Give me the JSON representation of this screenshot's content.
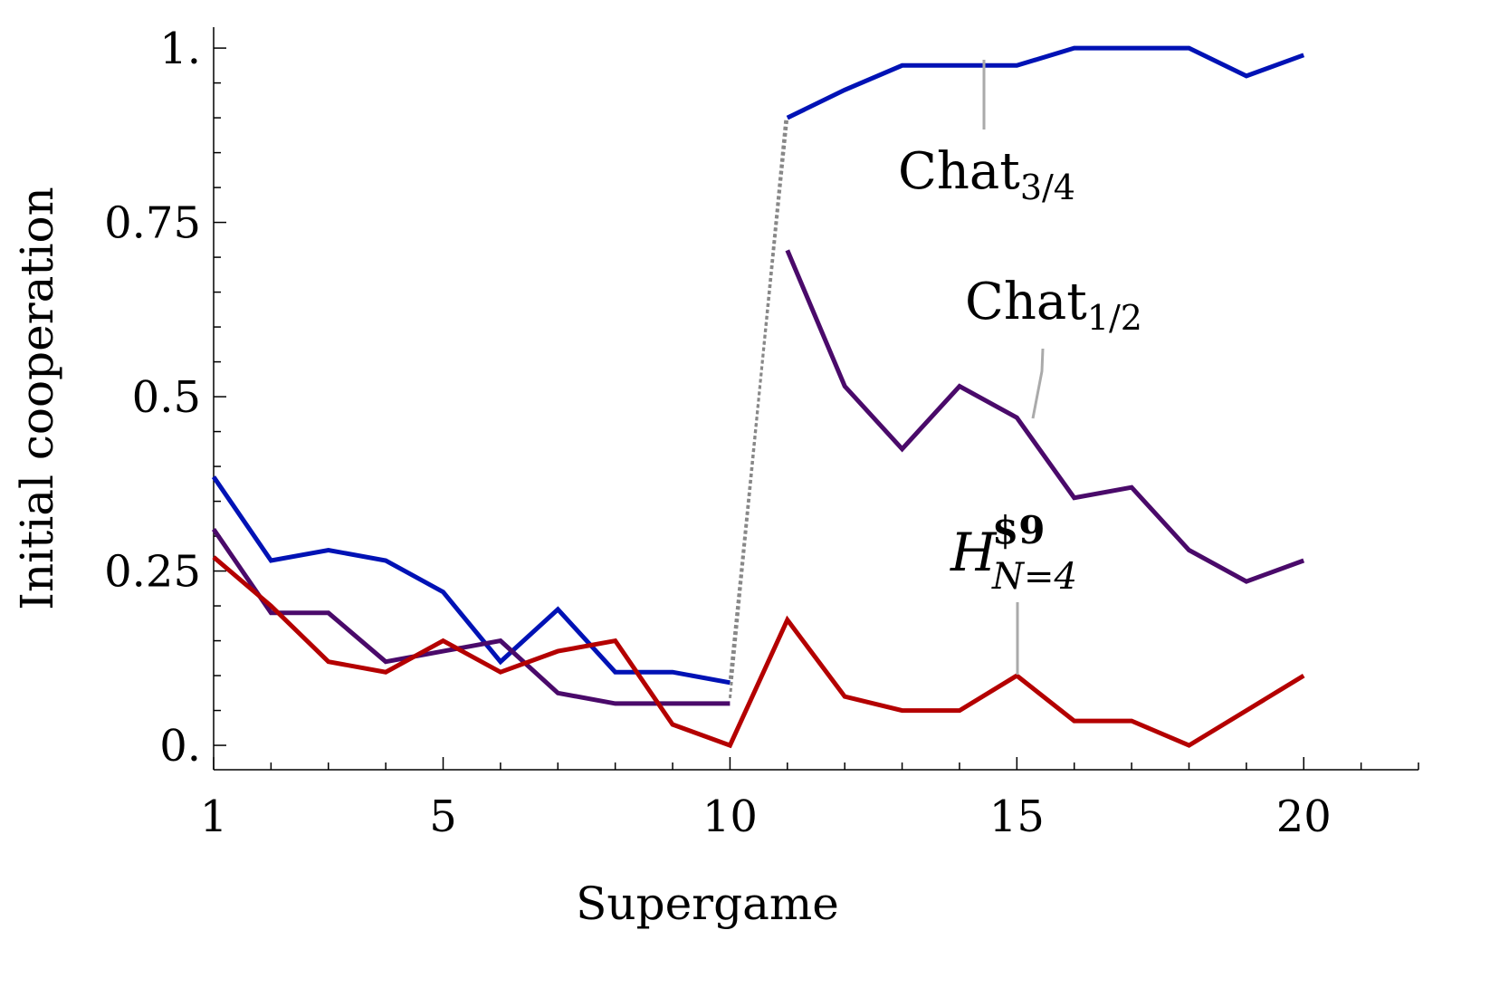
{
  "chart_data": {
    "type": "line",
    "xlabel": "Supergame",
    "ylabel": "Initial cooperation",
    "xlim": [
      1,
      22
    ],
    "ylim": [
      -0.035,
      1.03
    ],
    "x_ticks": [
      1,
      5,
      10,
      15,
      20
    ],
    "x_tick_labels": [
      "1",
      "5",
      "10",
      "15",
      "20"
    ],
    "y_ticks": [
      0,
      0.25,
      0.5,
      0.75,
      1
    ],
    "y_tick_labels": [
      "0.",
      "0.25",
      "0.5",
      "0.75",
      "1."
    ],
    "y_minor_step": 0.05,
    "grid": false,
    "series": [
      {
        "name": "Chat3/4",
        "color": "#0012b5",
        "x": [
          1,
          2,
          3,
          4,
          5,
          6,
          7,
          8,
          9,
          10,
          11,
          12,
          13,
          14,
          15,
          16,
          17,
          18,
          19,
          20
        ],
        "values": [
          0.385,
          0.265,
          0.28,
          0.265,
          0.22,
          0.12,
          0.195,
          0.105,
          0.105,
          0.09,
          0.9,
          0.94,
          0.975,
          0.975,
          0.975,
          1.0,
          1.0,
          1.0,
          0.96,
          0.99
        ]
      },
      {
        "name": "Chat1/2",
        "color": "#4a0a6a",
        "x": [
          1,
          2,
          3,
          4,
          5,
          6,
          7,
          8,
          9,
          10,
          11,
          12,
          13,
          14,
          15,
          16,
          17,
          18,
          19,
          20
        ],
        "values": [
          0.31,
          0.19,
          0.19,
          0.12,
          0.135,
          0.15,
          0.075,
          0.06,
          0.06,
          0.06,
          0.71,
          0.515,
          0.425,
          0.515,
          0.47,
          0.355,
          0.37,
          0.28,
          0.235,
          0.265
        ]
      },
      {
        "name": "H$9N=4",
        "color": "#b40000",
        "x": [
          1,
          2,
          3,
          4,
          5,
          6,
          7,
          8,
          9,
          10,
          11,
          12,
          13,
          14,
          15,
          16,
          17,
          18,
          19,
          20
        ],
        "values": [
          0.27,
          0.2,
          0.12,
          0.105,
          0.15,
          0.105,
          0.135,
          0.15,
          0.03,
          0.0,
          0.18,
          0.07,
          0.05,
          0.05,
          0.1,
          0.035,
          0.035,
          0.0,
          0.05,
          0.1
        ]
      }
    ],
    "annotations": {
      "chat34": {
        "main": "Chat",
        "sub": "3/4"
      },
      "chat12": {
        "main": "Chat",
        "sub": "1/2"
      },
      "h": {
        "main": "H",
        "sup": "$9",
        "sub": "N=4"
      }
    }
  }
}
